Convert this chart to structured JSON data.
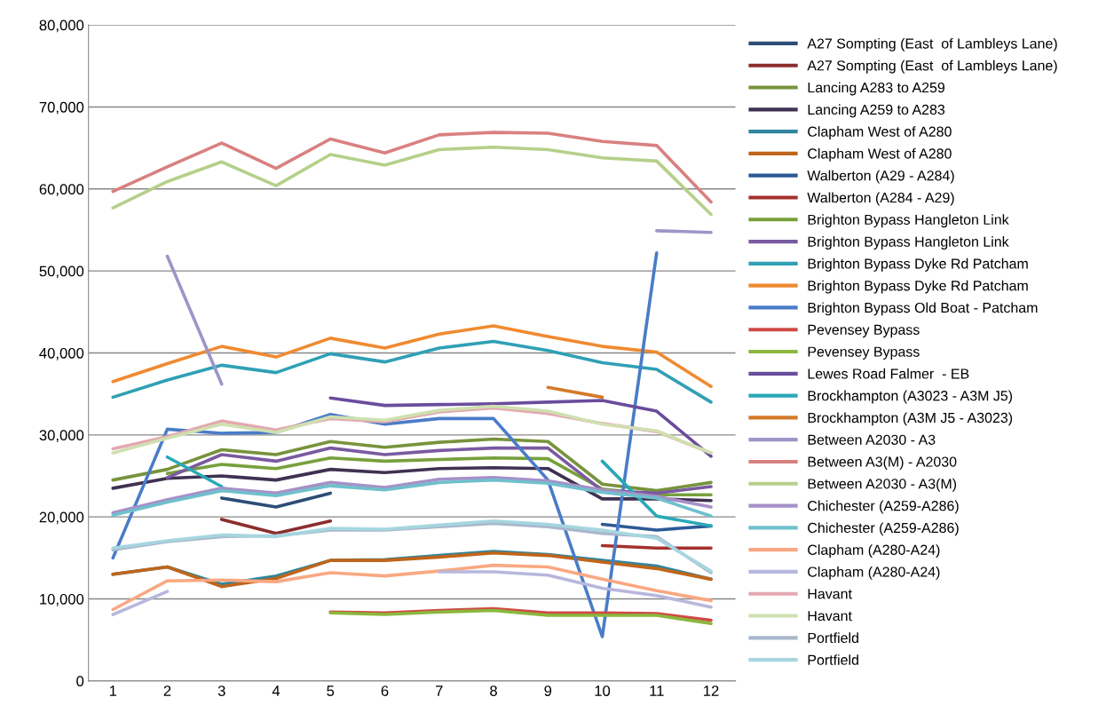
{
  "chart_data": {
    "type": "line",
    "categories": [
      "1",
      "2",
      "3",
      "4",
      "5",
      "6",
      "7",
      "8",
      "9",
      "10",
      "11",
      "12"
    ],
    "ylim": [
      0,
      80000
    ],
    "yticks": [
      {
        "value": 0,
        "label": "0"
      },
      {
        "value": 10000,
        "label": "10,000"
      },
      {
        "value": 20000,
        "label": "20,000"
      },
      {
        "value": 30000,
        "label": "30,000"
      },
      {
        "value": 40000,
        "label": "40,000"
      },
      {
        "value": 50000,
        "label": "50,000"
      },
      {
        "value": 60000,
        "label": "60,000"
      },
      {
        "value": 70000,
        "label": "70,000"
      },
      {
        "value": 80000,
        "label": "80,000"
      }
    ],
    "grid": "y",
    "legend": "right",
    "marker": "none",
    "line_style": "solid",
    "series": [
      {
        "name": "A27 Sompting (East  of Lambleys Lane)",
        "color": "#2c4d75",
        "values": [
          null,
          null,
          22300,
          21200,
          22900,
          null,
          null,
          null,
          null,
          null,
          null,
          null
        ]
      },
      {
        "name": "A27 Sompting (East  of Lambleys Lane)",
        "color": "#8b2d2d",
        "values": [
          null,
          null,
          19700,
          18000,
          19500,
          null,
          null,
          null,
          null,
          null,
          null,
          null
        ]
      },
      {
        "name": "Lancing A283 to A259",
        "color": "#77933c",
        "values": [
          24500,
          25800,
          28200,
          27600,
          29200,
          28500,
          29100,
          29500,
          29200,
          24000,
          23200,
          24200
        ]
      },
      {
        "name": "Lancing A259 to A283",
        "color": "#403152",
        "values": [
          23500,
          24700,
          25000,
          24500,
          25800,
          25400,
          25900,
          26000,
          25900,
          22200,
          22200,
          22000
        ]
      },
      {
        "name": "Clapham West of A280",
        "color": "#31859c",
        "values": [
          13000,
          13900,
          11800,
          12800,
          14700,
          14800,
          15300,
          15800,
          15400,
          14700,
          14000,
          12400
        ]
      },
      {
        "name": "Clapham West of A280",
        "color": "#c0651a",
        "values": [
          13000,
          13900,
          11500,
          12500,
          14700,
          14700,
          15100,
          15600,
          15300,
          14500,
          13700,
          12400
        ]
      },
      {
        "name": "Walberton (A29 - A284)",
        "color": "#2c5a96",
        "values": [
          null,
          null,
          null,
          null,
          null,
          null,
          null,
          null,
          null,
          19100,
          18400,
          18900
        ]
      },
      {
        "name": "Walberton (A284 - A29)",
        "color": "#a5302d",
        "values": [
          null,
          null,
          null,
          null,
          null,
          null,
          null,
          null,
          null,
          16500,
          16200,
          16200
        ]
      },
      {
        "name": "Brighton Bypass Hangleton Link",
        "color": "#77a03c",
        "values": [
          null,
          25300,
          26400,
          25900,
          27200,
          26800,
          27000,
          27200,
          27100,
          23400,
          22700,
          22700
        ]
      },
      {
        "name": "Brighton Bypass Hangleton Link",
        "color": "#7a5aa0",
        "values": [
          null,
          24800,
          27600,
          26800,
          28400,
          27600,
          28100,
          28400,
          28400,
          23200,
          22900,
          23700
        ]
      },
      {
        "name": "Brighton Bypass Dyke Rd Patcham",
        "color": "#2fa0b5",
        "values": [
          34600,
          36700,
          38500,
          37600,
          39900,
          38900,
          40600,
          41400,
          40300,
          38800,
          38000,
          34000
        ]
      },
      {
        "name": "Brighton Bypass Dyke Rd Patcham",
        "color": "#f08a30",
        "values": [
          36500,
          38700,
          40800,
          39500,
          41800,
          40600,
          42300,
          43300,
          42000,
          40800,
          40100,
          35900
        ]
      },
      {
        "name": "Brighton Bypass Old Boat - Patcham",
        "color": "#4a7cc8",
        "values": [
          15000,
          30700,
          30200,
          30300,
          32500,
          31300,
          32000,
          32000,
          24500,
          5400,
          52200,
          null
        ]
      },
      {
        "name": "Pevensey Bypass",
        "color": "#d04a45",
        "values": [
          null,
          null,
          null,
          null,
          8400,
          8300,
          8600,
          8800,
          8300,
          8300,
          8200,
          7400
        ]
      },
      {
        "name": "Pevensey Bypass",
        "color": "#8ab83c",
        "values": [
          null,
          null,
          null,
          null,
          8300,
          8100,
          8400,
          8600,
          8000,
          8000,
          8000,
          7000
        ]
      },
      {
        "name": "Lewes Road Falmer  - EB",
        "color": "#6a4c9c",
        "values": [
          null,
          null,
          null,
          null,
          34500,
          33600,
          33700,
          33800,
          34000,
          34200,
          32900,
          27400
        ]
      },
      {
        "name": "Brockhampton (A3023 - A3M J5)",
        "color": "#2aa8b8",
        "values": [
          null,
          27300,
          23700,
          null,
          null,
          null,
          null,
          null,
          null,
          26800,
          20100,
          18900
        ]
      },
      {
        "name": "Brockhampton (A3M J5 - A3023)",
        "color": "#d47a2a",
        "values": [
          null,
          null,
          null,
          null,
          null,
          null,
          null,
          null,
          35800,
          34600,
          null,
          null
        ]
      },
      {
        "name": "Between A2030 - A3",
        "color": "#9b97c8",
        "values": [
          null,
          51800,
          36200,
          null,
          null,
          null,
          null,
          null,
          null,
          null,
          54900,
          54700
        ]
      },
      {
        "name": "Between A3(M) - A2030",
        "color": "#d98080",
        "values": [
          59700,
          62700,
          65600,
          62500,
          66100,
          64400,
          66600,
          66900,
          66800,
          65800,
          65300,
          58400
        ]
      },
      {
        "name": "Between A2030 - A3(M)",
        "color": "#b5d08a",
        "values": [
          57700,
          60900,
          63300,
          60400,
          64200,
          62900,
          64800,
          65100,
          64800,
          63800,
          63400,
          56900
        ]
      },
      {
        "name": "Chichester (A259-A286)",
        "color": "#a690c8",
        "values": [
          20500,
          22100,
          23500,
          22900,
          24200,
          23600,
          24600,
          24800,
          24400,
          23300,
          22500,
          21200
        ]
      },
      {
        "name": "Chichester (A259-A286)",
        "color": "#6fc0cc",
        "values": [
          20200,
          21800,
          23200,
          22600,
          23800,
          23300,
          24200,
          24500,
          24100,
          23000,
          22300,
          20100
        ]
      },
      {
        "name": "Clapham (A280-A24)",
        "color": "#f9a882",
        "values": [
          8700,
          12200,
          12300,
          12100,
          13200,
          12800,
          13400,
          14100,
          13900,
          12400,
          11000,
          9800
        ]
      },
      {
        "name": "Clapham (A280-A24)",
        "color": "#b7b7dd",
        "values": [
          8100,
          10900,
          null,
          null,
          null,
          null,
          13300,
          13300,
          12900,
          11300,
          10400,
          9000
        ]
      },
      {
        "name": "Havant",
        "color": "#e3a9b0",
        "values": [
          28300,
          29800,
          31700,
          30600,
          32000,
          31600,
          32800,
          33300,
          32600,
          31400,
          30400,
          27800
        ]
      },
      {
        "name": "Havant",
        "color": "#cfe0b0",
        "values": [
          27800,
          29600,
          31300,
          30300,
          32200,
          31800,
          33000,
          33500,
          32900,
          31300,
          30500,
          27800
        ]
      },
      {
        "name": "Portfield",
        "color": "#a8b8cc",
        "values": [
          16000,
          17000,
          17600,
          17700,
          18400,
          18400,
          18800,
          19200,
          18800,
          18000,
          17600,
          13200
        ]
      },
      {
        "name": "Portfield",
        "color": "#a6d6e0",
        "values": [
          16200,
          17100,
          17800,
          17600,
          18600,
          18500,
          19000,
          19500,
          19100,
          18400,
          17400,
          13400
        ]
      }
    ]
  }
}
